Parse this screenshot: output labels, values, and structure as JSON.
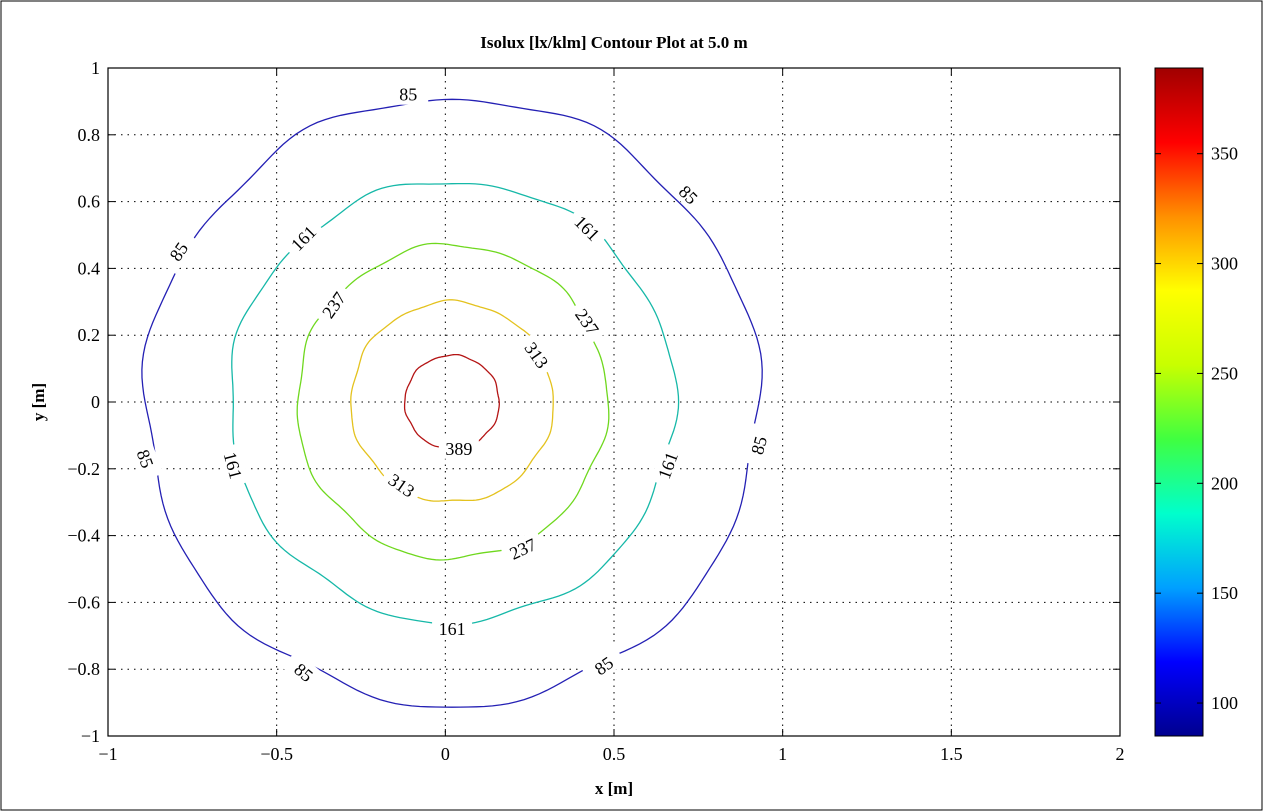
{
  "chart_data": {
    "type": "contour",
    "title": "Isolux [lx/klm] Contour Plot at 5.0 m",
    "xlabel": "x [m]",
    "ylabel": "y [m]",
    "xlim": [
      -1,
      2
    ],
    "ylim": [
      -1,
      1
    ],
    "xticks": [
      -1,
      -0.5,
      0,
      0.5,
      1,
      1.5,
      2
    ],
    "xtick_labels": [
      "−1",
      "−0.5",
      "0",
      "0.5",
      "1",
      "1.5",
      "2"
    ],
    "yticks": [
      1,
      0.8,
      0.6,
      0.4,
      0.2,
      0,
      -0.2,
      -0.4,
      -0.6,
      -0.8,
      -1
    ],
    "ytick_labels": [
      "1",
      "0.8",
      "0.6",
      "0.4",
      "0.2",
      "0",
      "−0.2",
      "−0.4",
      "−0.6",
      "−0.8",
      "−1"
    ],
    "grid": true,
    "center": [
      0.02,
      0.0
    ],
    "levels": [
      {
        "value": 85,
        "color": "#2420b4",
        "radius_x": 0.91,
        "radius_y": 0.91,
        "gaps_deg": [
          [
            150,
            165
          ],
          [
            70,
            108
          ],
          [
            27,
            47
          ],
          [
            -15,
            -8
          ],
          [
            -58,
            -38
          ],
          [
            -119,
            -107
          ],
          [
            -125,
            -134
          ],
          [
            -191,
            -188
          ],
          [
            -171,
            -163
          ]
        ],
        "labels": [
          {
            "text": "85",
            "x": -0.11,
            "y": 0.92,
            "rot": 0
          },
          {
            "text": "85",
            "x": 0.72,
            "y": 0.62,
            "rot": 45
          },
          {
            "text": "85",
            "x": -0.79,
            "y": 0.45,
            "rot": -55
          },
          {
            "text": "85",
            "x": -0.89,
            "y": -0.17,
            "rot": 70
          },
          {
            "text": "85",
            "x": 0.93,
            "y": -0.13,
            "rot": -75
          },
          {
            "text": "85",
            "x": -0.42,
            "y": -0.81,
            "rot": 40
          },
          {
            "text": "85",
            "x": 0.47,
            "y": -0.79,
            "rot": -35
          }
        ]
      },
      {
        "value": 161,
        "color": "#16b8a8",
        "radius_x": 0.66,
        "radius_y": 0.66,
        "labels": [
          {
            "text": "161",
            "x": -0.42,
            "y": 0.49,
            "rot": -45
          },
          {
            "text": "161",
            "x": 0.42,
            "y": 0.52,
            "rot": 45
          },
          {
            "text": "161",
            "x": -0.63,
            "y": -0.19,
            "rot": 75
          },
          {
            "text": "161",
            "x": 0.66,
            "y": -0.19,
            "rot": -70
          },
          {
            "text": "161",
            "x": 0.02,
            "y": -0.68,
            "rot": 0
          }
        ]
      },
      {
        "value": 237,
        "color": "#6fd81e",
        "radius_x": 0.46,
        "radius_y": 0.47,
        "labels": [
          {
            "text": "237",
            "x": -0.33,
            "y": 0.29,
            "rot": -55
          },
          {
            "text": "237",
            "x": 0.42,
            "y": 0.24,
            "rot": 55
          },
          {
            "text": "237",
            "x": 0.23,
            "y": -0.44,
            "rot": -25
          }
        ]
      },
      {
        "value": 313,
        "color": "#e4c21e",
        "radius_x": 0.3,
        "radius_y": 0.3,
        "labels": [
          {
            "text": "313",
            "x": 0.27,
            "y": 0.14,
            "rot": 55
          },
          {
            "text": "313",
            "x": -0.13,
            "y": -0.25,
            "rot": 35
          }
        ]
      },
      {
        "value": 389,
        "color": "#b41414",
        "radius_x": 0.14,
        "radius_y": 0.14,
        "labels": [
          {
            "text": "389",
            "x": 0.04,
            "y": -0.14,
            "rot": 0
          }
        ]
      }
    ],
    "colorbar": {
      "min": 85,
      "max": 389,
      "ticks": [
        100,
        150,
        200,
        250,
        300,
        350
      ],
      "colors": [
        "#00008f",
        "#0000ff",
        "#00a0ff",
        "#00ffcc",
        "#40ff40",
        "#c8ff00",
        "#ffff00",
        "#ff9000",
        "#ff0000",
        "#a00000"
      ]
    }
  }
}
